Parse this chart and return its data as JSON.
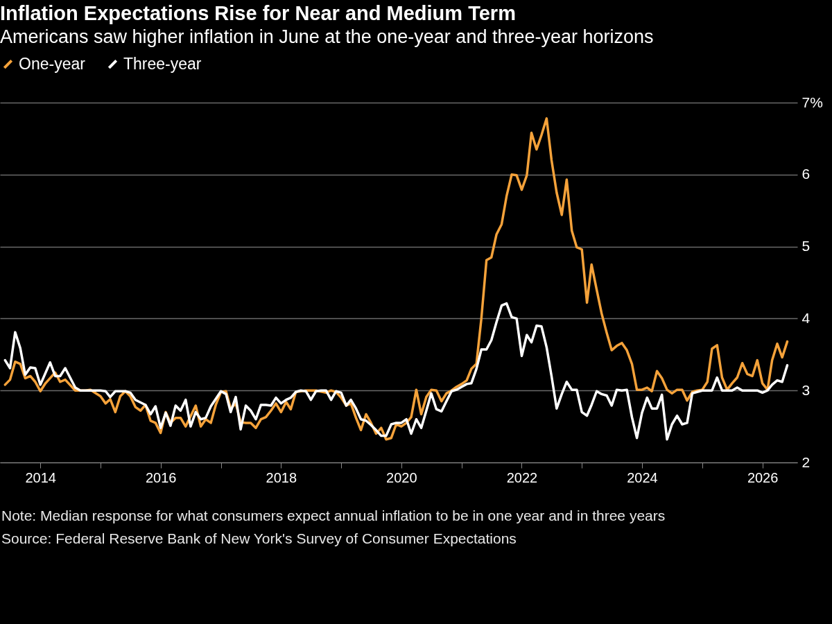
{
  "chart_data": {
    "type": "line",
    "title": "Inflation Expectations Rise for Near and Medium Term",
    "subtitle": "Americans saw higher inflation in June at the one-year and three-year horizons",
    "annotations": [
      "Note: Median response for what consumers expect annual inflation to be in one year and in three years",
      "Source: Federal Reserve Bank of New York's Survey of Consumer Expectations"
    ],
    "legend": "top left",
    "grid": "y",
    "line_style": "solid",
    "xlim": [
      "2013-05",
      "2026-08"
    ],
    "xticks": [
      {
        "value": "2014",
        "label": "2014"
      },
      {
        "value": "2015",
        "label": null
      },
      {
        "value": "2016",
        "label": "2016"
      },
      {
        "value": "2017",
        "label": null
      },
      {
        "value": "2018",
        "label": "2018"
      },
      {
        "value": "2019",
        "label": null
      },
      {
        "value": "2020",
        "label": "2020"
      },
      {
        "value": "2021",
        "label": null
      },
      {
        "value": "2022",
        "label": "2022"
      },
      {
        "value": "2023",
        "label": null
      },
      {
        "value": "2024",
        "label": "2024"
      },
      {
        "value": "2025",
        "label": null
      },
      {
        "value": "2026",
        "label": "2026"
      }
    ],
    "ylim": [
      2,
      7
    ],
    "yticks": [
      2,
      3,
      4,
      5,
      6,
      {
        "value": 7,
        "label": "7%"
      }
    ],
    "series": [
      {
        "name": "One-year",
        "color": "#f5a23a",
        "x": [
          "2013-06",
          "2013-07",
          "2013-08",
          "2013-09",
          "2013-10",
          "2013-11",
          "2013-12",
          "2014-01",
          "2014-02",
          "2014-04",
          "2014-05",
          "2014-06",
          "2014-08",
          "2014-10",
          "2014-11",
          "2015-01",
          "2015-02",
          "2015-03",
          "2015-04",
          "2015-05",
          "2015-06",
          "2015-07",
          "2015-08",
          "2015-09",
          "2015-10",
          "2015-11",
          "2015-12",
          "2016-01",
          "2016-02",
          "2016-03",
          "2016-04",
          "2016-05",
          "2016-06",
          "2016-08",
          "2016-09",
          "2016-10",
          "2016-11",
          "2016-12",
          "2017-01",
          "2017-02",
          "2017-03",
          "2017-04",
          "2017-05",
          "2017-06",
          "2017-07",
          "2017-08",
          "2017-09",
          "2017-10",
          "2017-11",
          "2017-12",
          "2018-01",
          "2018-02",
          "2018-03",
          "2018-04",
          "2018-06",
          "2018-08",
          "2018-10",
          "2018-11",
          "2018-12",
          "2019-01",
          "2019-02",
          "2019-03",
          "2019-04",
          "2019-05",
          "2019-06",
          "2019-07",
          "2019-08",
          "2019-09",
          "2019-10",
          "2019-11",
          "2019-12",
          "2020-01",
          "2020-02",
          "2020-03",
          "2020-04",
          "2020-05",
          "2020-06",
          "2020-07",
          "2020-08",
          "2020-09",
          "2020-10",
          "2020-11",
          "2020-12",
          "2021-01",
          "2021-02",
          "2021-03",
          "2021-04",
          "2021-05",
          "2021-06",
          "2021-07",
          "2021-08",
          "2021-09",
          "2021-10",
          "2021-11",
          "2021-12",
          "2022-01",
          "2022-02",
          "2022-03",
          "2022-04",
          "2022-05",
          "2022-06",
          "2022-07",
          "2022-08",
          "2022-09",
          "2022-10",
          "2022-11",
          "2022-12",
          "2023-01",
          "2023-02",
          "2023-03",
          "2023-04",
          "2023-05",
          "2023-06",
          "2023-07",
          "2023-08",
          "2023-09",
          "2023-10",
          "2023-11",
          "2023-12",
          "2024-01",
          "2024-02",
          "2024-03",
          "2024-04",
          "2024-05",
          "2024-06",
          "2024-07",
          "2024-08",
          "2024-09",
          "2024-10",
          "2024-11",
          "2024-12",
          "2025-01",
          "2025-02",
          "2025-03",
          "2025-04",
          "2025-05",
          "2025-06",
          "2025-07",
          "2025-08",
          "2025-09",
          "2025-10",
          "2025-11",
          "2025-12",
          "2026-01",
          "2026-02",
          "2026-03",
          "2026-04",
          "2026-05",
          "2026-06"
        ],
        "values": [
          3.08,
          3.15,
          3.4,
          3.37,
          3.17,
          3.2,
          3.12,
          2.99,
          3.1,
          3.25,
          3.12,
          3.15,
          3.0,
          3.0,
          3.01,
          2.92,
          2.82,
          2.88,
          2.7,
          2.92,
          2.99,
          2.92,
          2.77,
          2.72,
          2.8,
          2.58,
          2.55,
          2.41,
          2.7,
          2.55,
          2.62,
          2.62,
          2.5,
          2.79,
          2.5,
          2.6,
          2.55,
          2.8,
          2.98,
          2.99,
          2.75,
          2.82,
          2.56,
          2.55,
          2.55,
          2.48,
          2.6,
          2.63,
          2.72,
          2.82,
          2.7,
          2.84,
          2.74,
          2.98,
          3.0,
          3.0,
          2.97,
          3.0,
          2.98,
          2.9,
          2.79,
          2.82,
          2.62,
          2.45,
          2.67,
          2.55,
          2.4,
          2.48,
          2.32,
          2.34,
          2.53,
          2.5,
          2.55,
          2.63,
          3.01,
          2.67,
          2.91,
          3.01,
          3.0,
          2.85,
          2.96,
          3.0,
          3.05,
          3.09,
          3.14,
          3.3,
          3.37,
          4.0,
          4.81,
          4.85,
          5.17,
          5.31,
          5.7,
          6.0,
          5.99,
          5.79,
          5.99,
          6.58,
          6.35,
          6.55,
          6.78,
          6.2,
          5.75,
          5.44,
          5.93,
          5.22,
          4.99,
          4.96,
          4.22,
          4.75,
          4.4,
          4.07,
          3.8,
          3.56,
          3.62,
          3.66,
          3.56,
          3.37,
          3.01,
          3.01,
          3.04,
          2.99,
          3.27,
          3.17,
          3.01,
          2.96,
          3.01,
          3.01,
          2.86,
          2.98,
          3.0,
          3.01,
          3.12,
          3.58,
          3.63,
          3.18,
          3.01,
          3.1,
          3.18,
          3.38,
          3.23,
          3.2,
          3.42,
          3.1,
          3.01,
          3.42,
          3.65,
          3.46,
          3.68
        ]
      },
      {
        "name": "Three-year",
        "color": "#ffffff",
        "x": [
          "2013-06",
          "2013-07",
          "2013-08",
          "2013-09",
          "2013-10",
          "2013-11",
          "2013-12",
          "2014-01",
          "2014-03",
          "2014-04",
          "2014-05",
          "2014-06",
          "2014-08",
          "2014-09",
          "2014-11",
          "2015-01",
          "2015-02",
          "2015-03",
          "2015-04",
          "2015-06",
          "2015-07",
          "2015-08",
          "2015-10",
          "2015-11",
          "2015-12",
          "2016-01",
          "2016-02",
          "2016-03",
          "2016-04",
          "2016-05",
          "2016-06",
          "2016-07",
          "2016-08",
          "2016-09",
          "2016-10",
          "2016-11",
          "2017-01",
          "2017-02",
          "2017-03",
          "2017-04",
          "2017-05",
          "2017-06",
          "2017-07",
          "2017-08",
          "2017-09",
          "2017-10",
          "2017-11",
          "2017-12",
          "2018-01",
          "2018-02",
          "2018-03",
          "2018-04",
          "2018-05",
          "2018-06",
          "2018-07",
          "2018-08",
          "2018-09",
          "2018-10",
          "2018-11",
          "2018-12",
          "2019-01",
          "2019-02",
          "2019-03",
          "2019-04",
          "2019-05",
          "2019-06",
          "2019-07",
          "2019-08",
          "2019-09",
          "2019-10",
          "2019-11",
          "2019-12",
          "2020-01",
          "2020-02",
          "2020-03",
          "2020-04",
          "2020-05",
          "2020-06",
          "2020-07",
          "2020-08",
          "2020-09",
          "2020-10",
          "2020-11",
          "2020-12",
          "2021-01",
          "2021-02",
          "2021-03",
          "2021-04",
          "2021-05",
          "2021-06",
          "2021-07",
          "2021-08",
          "2021-09",
          "2021-10",
          "2021-11",
          "2021-12",
          "2022-01",
          "2022-02",
          "2022-03",
          "2022-04",
          "2022-05",
          "2022-06",
          "2022-07",
          "2022-08",
          "2022-09",
          "2022-10",
          "2022-11",
          "2022-12",
          "2023-01",
          "2023-02",
          "2023-03",
          "2023-04",
          "2023-05",
          "2023-06",
          "2023-07",
          "2023-08",
          "2023-09",
          "2023-10",
          "2023-11",
          "2023-12",
          "2024-01",
          "2024-02",
          "2024-03",
          "2024-04",
          "2024-05",
          "2024-06",
          "2024-07",
          "2024-08",
          "2024-09",
          "2024-10",
          "2024-11",
          "2024-12",
          "2025-01",
          "2025-02",
          "2025-03",
          "2025-04",
          "2025-05",
          "2025-06",
          "2025-07",
          "2025-08",
          "2025-09",
          "2025-10",
          "2025-11",
          "2025-12",
          "2026-01",
          "2026-02",
          "2026-03",
          "2026-04",
          "2026-05",
          "2026-06"
        ],
        "values": [
          3.42,
          3.31,
          3.81,
          3.59,
          3.22,
          3.32,
          3.31,
          3.08,
          3.39,
          3.2,
          3.2,
          3.31,
          3.04,
          3.0,
          3.0,
          3.0,
          2.99,
          2.91,
          2.99,
          2.99,
          2.97,
          2.87,
          2.8,
          2.67,
          2.78,
          2.48,
          2.69,
          2.51,
          2.79,
          2.72,
          2.87,
          2.5,
          2.7,
          2.6,
          2.62,
          2.78,
          2.99,
          2.95,
          2.7,
          2.91,
          2.46,
          2.79,
          2.72,
          2.6,
          2.8,
          2.8,
          2.79,
          2.9,
          2.82,
          2.87,
          2.9,
          2.98,
          3.0,
          2.99,
          2.87,
          2.99,
          3.0,
          3.0,
          2.87,
          2.99,
          2.97,
          2.79,
          2.87,
          2.75,
          2.6,
          2.58,
          2.52,
          2.45,
          2.37,
          2.37,
          2.53,
          2.55,
          2.55,
          2.6,
          2.4,
          2.6,
          2.48,
          2.72,
          2.96,
          2.74,
          2.71,
          2.85,
          2.99,
          3.01,
          3.05,
          3.09,
          3.1,
          3.3,
          3.57,
          3.57,
          3.7,
          3.95,
          4.18,
          4.21,
          4.02,
          4.0,
          3.48,
          3.77,
          3.67,
          3.9,
          3.89,
          3.6,
          3.2,
          2.75,
          2.95,
          3.12,
          3.01,
          3.01,
          2.7,
          2.65,
          2.8,
          2.99,
          2.95,
          2.93,
          2.79,
          3.01,
          3.0,
          3.01,
          2.63,
          2.34,
          2.69,
          2.9,
          2.75,
          2.75,
          2.94,
          2.32,
          2.53,
          2.65,
          2.53,
          2.55,
          2.96,
          2.98,
          3.0,
          3.0,
          3.0,
          3.18,
          3.0,
          3.0,
          3.0,
          3.04,
          3.0,
          3.0,
          3.0,
          3.0,
          2.97,
          3.0,
          3.08,
          3.14,
          3.12,
          3.35
        ]
      }
    ]
  }
}
